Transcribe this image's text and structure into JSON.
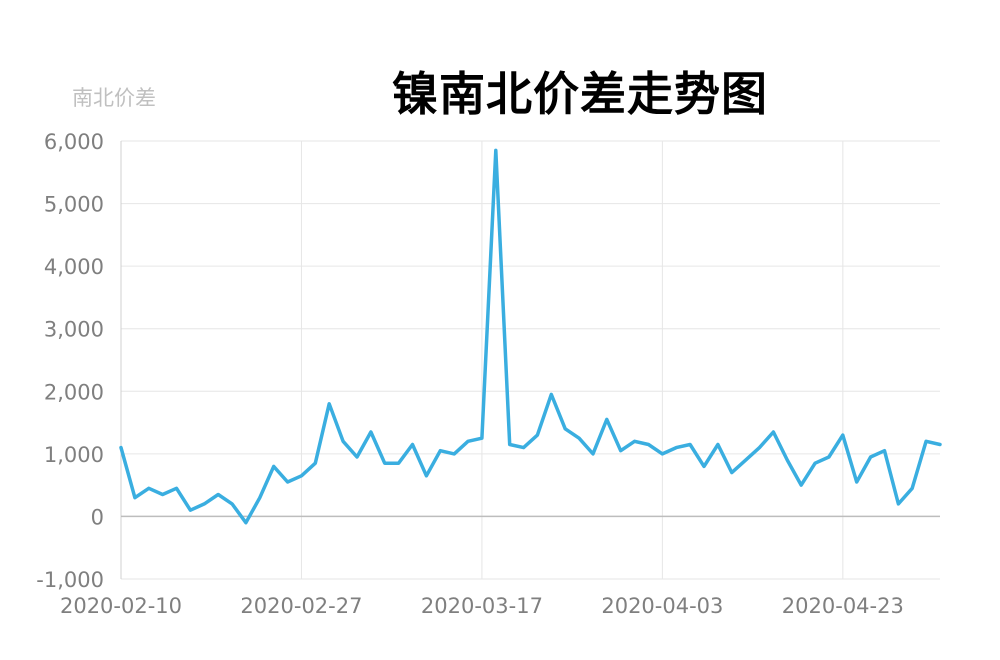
{
  "chart_data": {
    "type": "line",
    "title": "镍南北价差走势图",
    "ylabel": "南北价差",
    "xlabel": "",
    "ylim": [
      -1000,
      6000
    ],
    "y_ticks": [
      -1000,
      0,
      1000,
      2000,
      3000,
      4000,
      5000,
      6000
    ],
    "y_tick_labels": [
      "-1,000",
      "0",
      "1,000",
      "2,000",
      "3,000",
      "4,000",
      "5,000",
      "6,000"
    ],
    "x_tick_labels": [
      "2020-02-10",
      "2020-02-27",
      "2020-03-17",
      "2020-04-03",
      "2020-04-23"
    ],
    "x_tick_index": [
      0,
      13,
      26,
      39,
      52
    ],
    "grid": true,
    "series": [
      {
        "name": "",
        "color": "#3aaee0",
        "values": [
          1100,
          300,
          450,
          350,
          450,
          100,
          200,
          350,
          200,
          -100,
          300,
          800,
          550,
          650,
          850,
          1800,
          1200,
          950,
          1350,
          850,
          850,
          1150,
          650,
          1050,
          1000,
          1200,
          1250,
          5850,
          1150,
          1100,
          1300,
          1950,
          1400,
          1250,
          1000,
          1550,
          1050,
          1200,
          1150,
          1000,
          1100,
          1150,
          800,
          1150,
          700,
          900,
          1100,
          1350,
          900,
          500,
          850,
          950,
          1300,
          550,
          950,
          1050,
          200,
          450,
          1200,
          1150
        ]
      }
    ]
  }
}
